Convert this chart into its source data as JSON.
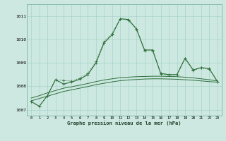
{
  "background_color": "#cde8e0",
  "grid_color": "#9ecfc4",
  "line_color": "#2d6e3a",
  "title": "Graphe pression niveau de la mer (hPa)",
  "xlim": [
    -0.5,
    23.5
  ],
  "ylim": [
    1006.75,
    1011.5
  ],
  "yticks": [
    1007,
    1008,
    1009,
    1010,
    1011
  ],
  "s1_x": [
    0,
    1,
    2,
    3,
    4,
    5,
    6,
    7,
    8,
    9,
    10,
    11,
    12,
    13,
    14,
    15,
    16,
    17,
    18,
    19,
    20,
    21,
    22,
    23
  ],
  "s1_y": [
    1007.35,
    1007.15,
    1007.6,
    1008.28,
    1008.1,
    1008.18,
    1008.3,
    1008.5,
    1009.0,
    1009.85,
    1010.2,
    1010.88,
    1010.85,
    1010.45,
    1009.55,
    1009.55,
    1008.55,
    1008.5,
    1008.5,
    1009.2,
    1008.7,
    1008.8,
    1008.75,
    1008.2
  ],
  "s2_x": [
    0,
    1,
    2,
    3,
    4,
    5,
    6,
    7,
    8,
    9,
    10,
    11,
    12,
    13,
    14,
    15,
    16,
    17,
    18,
    19,
    20,
    21,
    22,
    23
  ],
  "s2_y": [
    1007.35,
    1007.15,
    1007.6,
    1008.28,
    1008.25,
    1008.22,
    1008.35,
    1008.55,
    1009.05,
    1009.9,
    1010.25,
    1010.88,
    1010.82,
    1010.42,
    1009.52,
    1009.52,
    1008.52,
    1008.48,
    1008.48,
    1009.18,
    1008.68,
    1008.78,
    1008.72,
    1008.2
  ],
  "s3_x": [
    0,
    1,
    2,
    3,
    4,
    5,
    6,
    7,
    8,
    9,
    10,
    11,
    12,
    13,
    14,
    15,
    16,
    17,
    18,
    19,
    20,
    21,
    22,
    23
  ],
  "s3_y": [
    1007.38,
    1007.48,
    1007.58,
    1007.68,
    1007.78,
    1007.85,
    1007.92,
    1007.99,
    1008.07,
    1008.13,
    1008.19,
    1008.24,
    1008.27,
    1008.29,
    1008.31,
    1008.32,
    1008.32,
    1008.31,
    1008.3,
    1008.28,
    1008.26,
    1008.23,
    1008.2,
    1008.18
  ],
  "s4_x": [
    0,
    1,
    2,
    3,
    4,
    5,
    6,
    7,
    8,
    9,
    10,
    11,
    12,
    13,
    14,
    15,
    16,
    17,
    18,
    19,
    20,
    21,
    22,
    23
  ],
  "s4_y": [
    1007.5,
    1007.6,
    1007.72,
    1007.82,
    1007.92,
    1007.98,
    1008.05,
    1008.12,
    1008.2,
    1008.27,
    1008.32,
    1008.37,
    1008.39,
    1008.41,
    1008.42,
    1008.43,
    1008.43,
    1008.42,
    1008.41,
    1008.39,
    1008.36,
    1008.32,
    1008.28,
    1008.23
  ]
}
